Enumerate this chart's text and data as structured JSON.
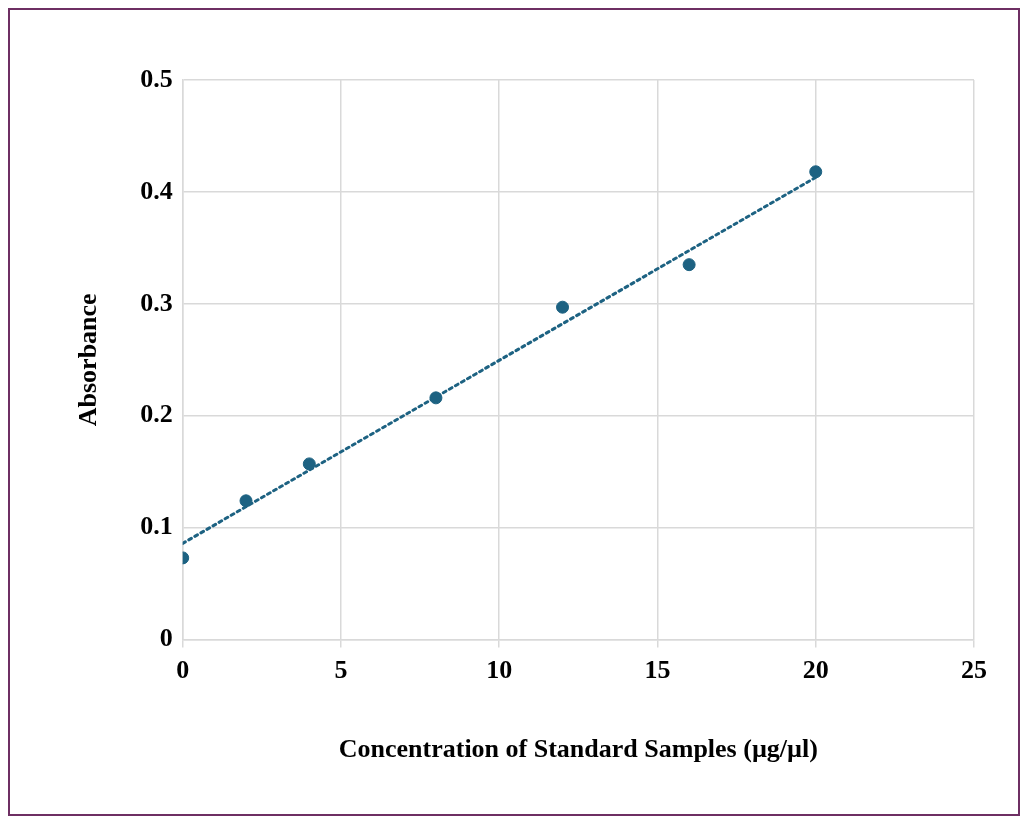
{
  "chart_data": {
    "type": "scatter",
    "xlabel": "Concentration of Standard Samples (µg/µl)",
    "ylabel": "Absorbance",
    "xlim": [
      0,
      25
    ],
    "xticks": [
      0,
      5,
      10,
      15,
      20,
      25
    ],
    "ylim": [
      0,
      0.5
    ],
    "yticks": [
      0,
      0.1,
      0.2,
      0.3,
      0.4,
      0.5
    ],
    "grid": true,
    "legend": false,
    "series": [
      {
        "color": "#1d6282",
        "marker": "circle",
        "x": [
          0,
          2,
          4,
          8,
          12,
          16,
          20
        ],
        "values": [
          0.073,
          0.124,
          0.157,
          0.216,
          0.297,
          0.335,
          0.418
        ]
      },
      {
        "type": "line",
        "color": "#1d6282",
        "marker": "none",
        "line_style": "dotted",
        "x": [
          0,
          20
        ],
        "values": [
          0.086,
          0.413
        ]
      }
    ]
  }
}
